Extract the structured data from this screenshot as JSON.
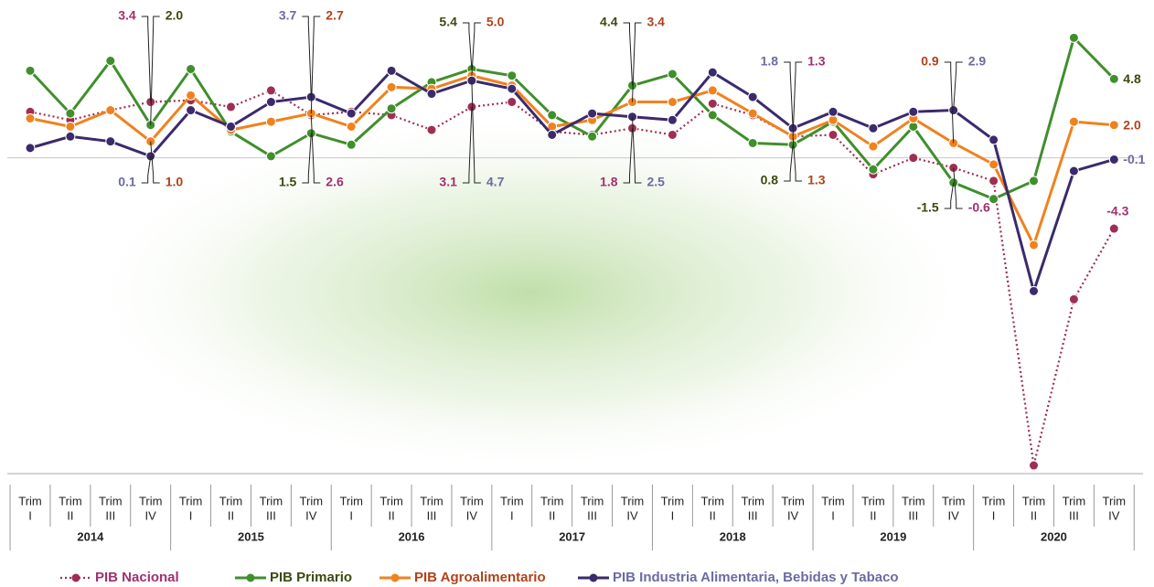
{
  "chart_data": {
    "type": "line",
    "category_prefix": "Trim",
    "categories": [
      "I",
      "II",
      "III",
      "IV",
      "I",
      "II",
      "III",
      "IV",
      "I",
      "II",
      "III",
      "IV",
      "I",
      "II",
      "III",
      "IV",
      "I",
      "II",
      "III",
      "IV",
      "I",
      "II",
      "III",
      "IV",
      "I",
      "II",
      "III",
      "IV"
    ],
    "years": [
      "2014",
      "2015",
      "2016",
      "2017",
      "2018",
      "2019",
      "2020"
    ],
    "ylim": [
      -19.2,
      9.6
    ],
    "series": [
      {
        "name": "PIB Nacional",
        "color": "#9e2f52",
        "label_color": "#a0306f",
        "dash": "dotted",
        "values": [
          2.8,
          2.3,
          2.9,
          3.4,
          3.5,
          3.1,
          4.1,
          2.6,
          2.8,
          2.6,
          1.7,
          3.1,
          3.4,
          1.6,
          1.4,
          1.8,
          1.4,
          3.3,
          2.6,
          1.3,
          1.4,
          -1.0,
          0.0,
          -0.6,
          -1.4,
          -18.7,
          -8.6,
          -4.3
        ],
        "value_labels": [
          null,
          null,
          null,
          "3.4",
          null,
          null,
          null,
          "2.6",
          null,
          null,
          null,
          "3.1",
          null,
          null,
          null,
          "1.8",
          null,
          null,
          null,
          "1.3",
          null,
          null,
          null,
          "-0.6",
          null,
          null,
          null,
          "-4.3"
        ]
      },
      {
        "name": "PIB Primario",
        "color": "#3f8f2c",
        "label_color": "#3b4a0e",
        "dash": "solid",
        "values": [
          5.3,
          2.7,
          5.9,
          2.0,
          5.4,
          1.6,
          0.1,
          1.5,
          0.8,
          3.0,
          4.6,
          5.4,
          5.0,
          2.6,
          1.3,
          4.4,
          5.1,
          2.6,
          0.9,
          0.8,
          2.2,
          -0.7,
          1.9,
          -1.5,
          -2.5,
          -1.4,
          7.3,
          4.8
        ],
        "value_labels": [
          null,
          null,
          null,
          "2.0",
          null,
          null,
          null,
          "1.5",
          null,
          null,
          null,
          "5.4",
          null,
          null,
          null,
          "4.4",
          null,
          null,
          null,
          "0.8",
          null,
          null,
          null,
          "-1.5",
          null,
          null,
          null,
          "4.8"
        ]
      },
      {
        "name": "PIB Agroalimentario",
        "color": "#f0821e",
        "label_color": "#b0421a",
        "dash": "solid",
        "values": [
          2.4,
          1.9,
          2.9,
          1.0,
          3.8,
          1.7,
          2.2,
          2.7,
          1.9,
          4.3,
          4.2,
          5.0,
          4.4,
          1.9,
          2.3,
          3.4,
          3.4,
          4.1,
          2.7,
          1.3,
          2.3,
          0.7,
          2.4,
          0.9,
          -0.4,
          -5.3,
          2.2,
          2.0
        ],
        "value_labels": [
          null,
          null,
          null,
          "1.0",
          null,
          null,
          null,
          "2.7",
          null,
          null,
          null,
          "5.0",
          null,
          null,
          null,
          "3.4",
          null,
          null,
          null,
          "1.3",
          null,
          null,
          null,
          "0.9",
          null,
          null,
          null,
          "2.0"
        ]
      },
      {
        "name": "PIB Industria Alimentaria, Bebidas y Tabaco",
        "color": "#3b2a6c",
        "label_color": "#6b6ba3",
        "dash": "solid",
        "values": [
          0.6,
          1.3,
          1.0,
          0.1,
          2.9,
          1.9,
          3.4,
          3.7,
          2.7,
          5.3,
          3.9,
          4.7,
          4.2,
          1.4,
          2.7,
          2.5,
          2.3,
          5.2,
          3.7,
          1.8,
          2.8,
          1.8,
          2.8,
          2.9,
          1.1,
          -8.1,
          -0.8,
          -0.1
        ],
        "value_labels": [
          null,
          null,
          null,
          "0.1",
          null,
          null,
          null,
          "3.7",
          null,
          null,
          null,
          "4.7",
          null,
          null,
          null,
          "2.5",
          null,
          null,
          null,
          "1.8",
          null,
          null,
          null,
          "2.9",
          null,
          null,
          null,
          "-0.1"
        ]
      }
    ]
  }
}
